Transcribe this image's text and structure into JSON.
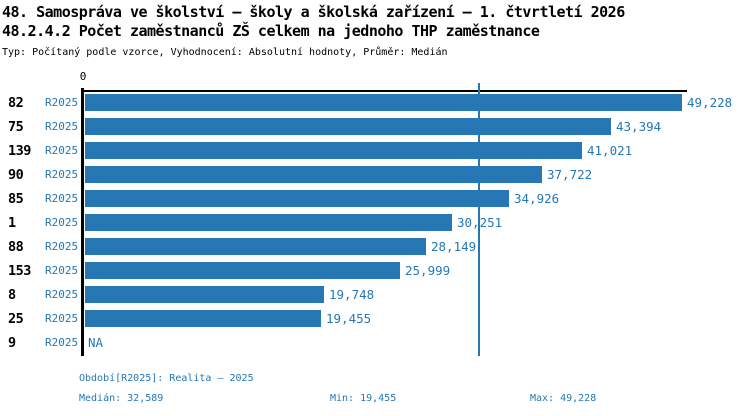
{
  "title": "48. Samospráva ve školství – školy a školská zařízení – 1. čtvrtletí 2026",
  "subtitle": "48.2.4.2 Počet zaměstnanců ZŠ celkem na jednoho THP zaměstnance",
  "meta_line": "Typ: Počítaný podle vzorce, Vyhodnocení: Absolutní hodnoty, Průměr: Medián",
  "colors": {
    "bar_blue": "#2777b4",
    "text_blue": "#2478b5",
    "axis_black": "#000000",
    "background": "#ffffff"
  },
  "chart_data": {
    "type": "bar",
    "orientation": "horizontal",
    "origin_label": "0",
    "xmin": 0,
    "xmax": 49228,
    "median": 32589,
    "series_label": "R2025",
    "na_label": "NA",
    "grid": false,
    "categories": [
      "82",
      "75",
      "139",
      "90",
      "85",
      "1",
      "88",
      "153",
      "8",
      "25",
      "9"
    ],
    "rows": [
      {
        "id": "82",
        "period": "R2025",
        "value": 49228,
        "label": "49,228"
      },
      {
        "id": "75",
        "period": "R2025",
        "value": 43394,
        "label": "43,394"
      },
      {
        "id": "139",
        "period": "R2025",
        "value": 41021,
        "label": "41,021"
      },
      {
        "id": "90",
        "period": "R2025",
        "value": 37722,
        "label": "37,722"
      },
      {
        "id": "85",
        "period": "R2025",
        "value": 34926,
        "label": "34,926"
      },
      {
        "id": "1",
        "period": "R2025",
        "value": 30251,
        "label": "30,251"
      },
      {
        "id": "88",
        "period": "R2025",
        "value": 28149,
        "label": "28,149"
      },
      {
        "id": "153",
        "period": "R2025",
        "value": 25999,
        "label": "25,999"
      },
      {
        "id": "8",
        "period": "R2025",
        "value": 19748,
        "label": "19,748"
      },
      {
        "id": "25",
        "period": "R2025",
        "value": 19455,
        "label": "19,455"
      },
      {
        "id": "9",
        "period": "R2025",
        "value": null,
        "label": "NA"
      }
    ]
  },
  "footer": {
    "period_line": "Období[R2025]: Realita – 2025",
    "median_label": "Medián: 32,589",
    "min_label": "Min: 19,455",
    "max_label": "Max: 49,228"
  }
}
